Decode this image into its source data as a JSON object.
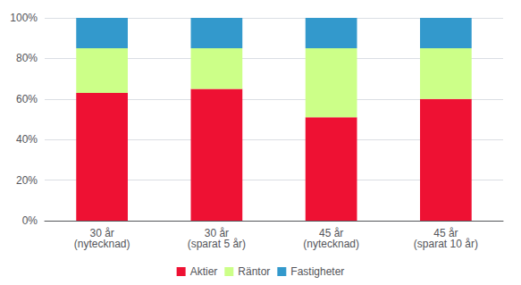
{
  "chart_data": {
    "type": "bar",
    "stacked": true,
    "categories": [
      "30 år\n(nytecknad)",
      "30 år\n(sparat 5 år)",
      "45 år\n(nytecknad)",
      "45 år\n(sparat 10 år)"
    ],
    "series": [
      {
        "name": "Aktier",
        "color": "#EE1133",
        "values": [
          0.63,
          0.65,
          0.51,
          0.6
        ]
      },
      {
        "name": "Räntor",
        "color": "#CCFF88",
        "values": [
          0.22,
          0.2,
          0.34,
          0.25
        ]
      },
      {
        "name": "Fastigheter",
        "color": "#3399CC",
        "values": [
          0.15,
          0.15,
          0.15,
          0.15
        ]
      }
    ],
    "ylim": [
      0,
      1.0
    ],
    "yticks": [
      {
        "value": 0.0,
        "label": "0%"
      },
      {
        "value": 0.2,
        "label": "20%"
      },
      {
        "value": 0.4,
        "label": "40%"
      },
      {
        "value": 0.6,
        "label": "60%"
      },
      {
        "value": 0.8,
        "label": "80%"
      },
      {
        "value": 1.0,
        "label": "100%"
      }
    ],
    "grid": true,
    "legend": "bottom"
  }
}
